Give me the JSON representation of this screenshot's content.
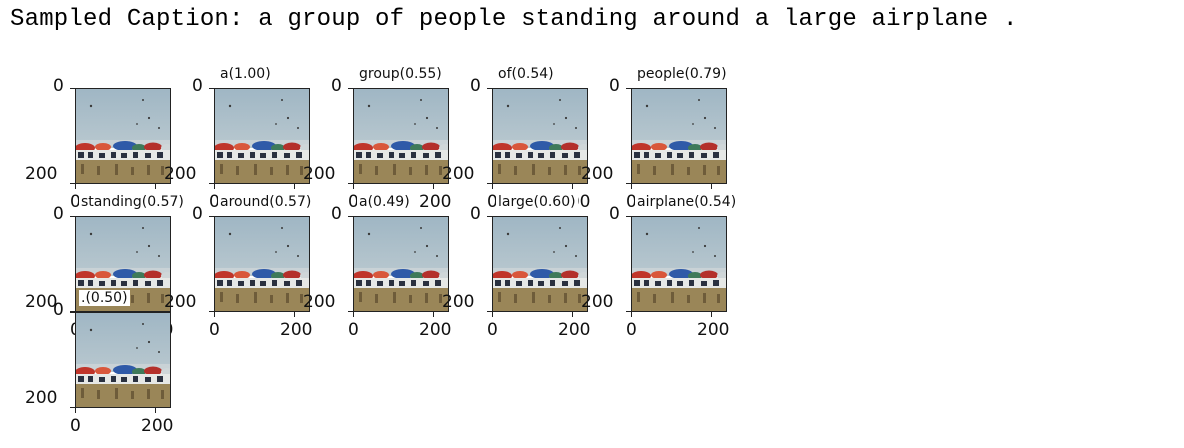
{
  "caption": "Sampled Caption: a group of people standing around a large airplane .",
  "chart_data": {
    "type": "image-grid",
    "axis_ticks": {
      "x": [
        "0",
        "200"
      ],
      "y": [
        "0",
        "200"
      ]
    },
    "panels": [
      {
        "word": "",
        "weight": null,
        "title": ""
      },
      {
        "word": "a",
        "weight": 1.0,
        "title": "a(1.00)"
      },
      {
        "word": "group",
        "weight": 0.55,
        "title": "group(0.55)"
      },
      {
        "word": "of",
        "weight": 0.54,
        "title": "of(0.54)"
      },
      {
        "word": "people",
        "weight": 0.79,
        "title": "people(0.79)"
      },
      {
        "word": "standing",
        "weight": 0.57,
        "title": "standing(0.57)"
      },
      {
        "word": "around",
        "weight": 0.57,
        "title": "around(0.57)"
      },
      {
        "word": "a",
        "weight": 0.49,
        "title": "a(0.49)"
      },
      {
        "word": "large",
        "weight": 0.6,
        "title": "large(0.60)"
      },
      {
        "word": "airplane",
        "weight": 0.54,
        "title": "airplane(0.54)"
      },
      {
        "word": ".",
        "weight": 0.5,
        "title": ".(0.50)"
      }
    ]
  }
}
